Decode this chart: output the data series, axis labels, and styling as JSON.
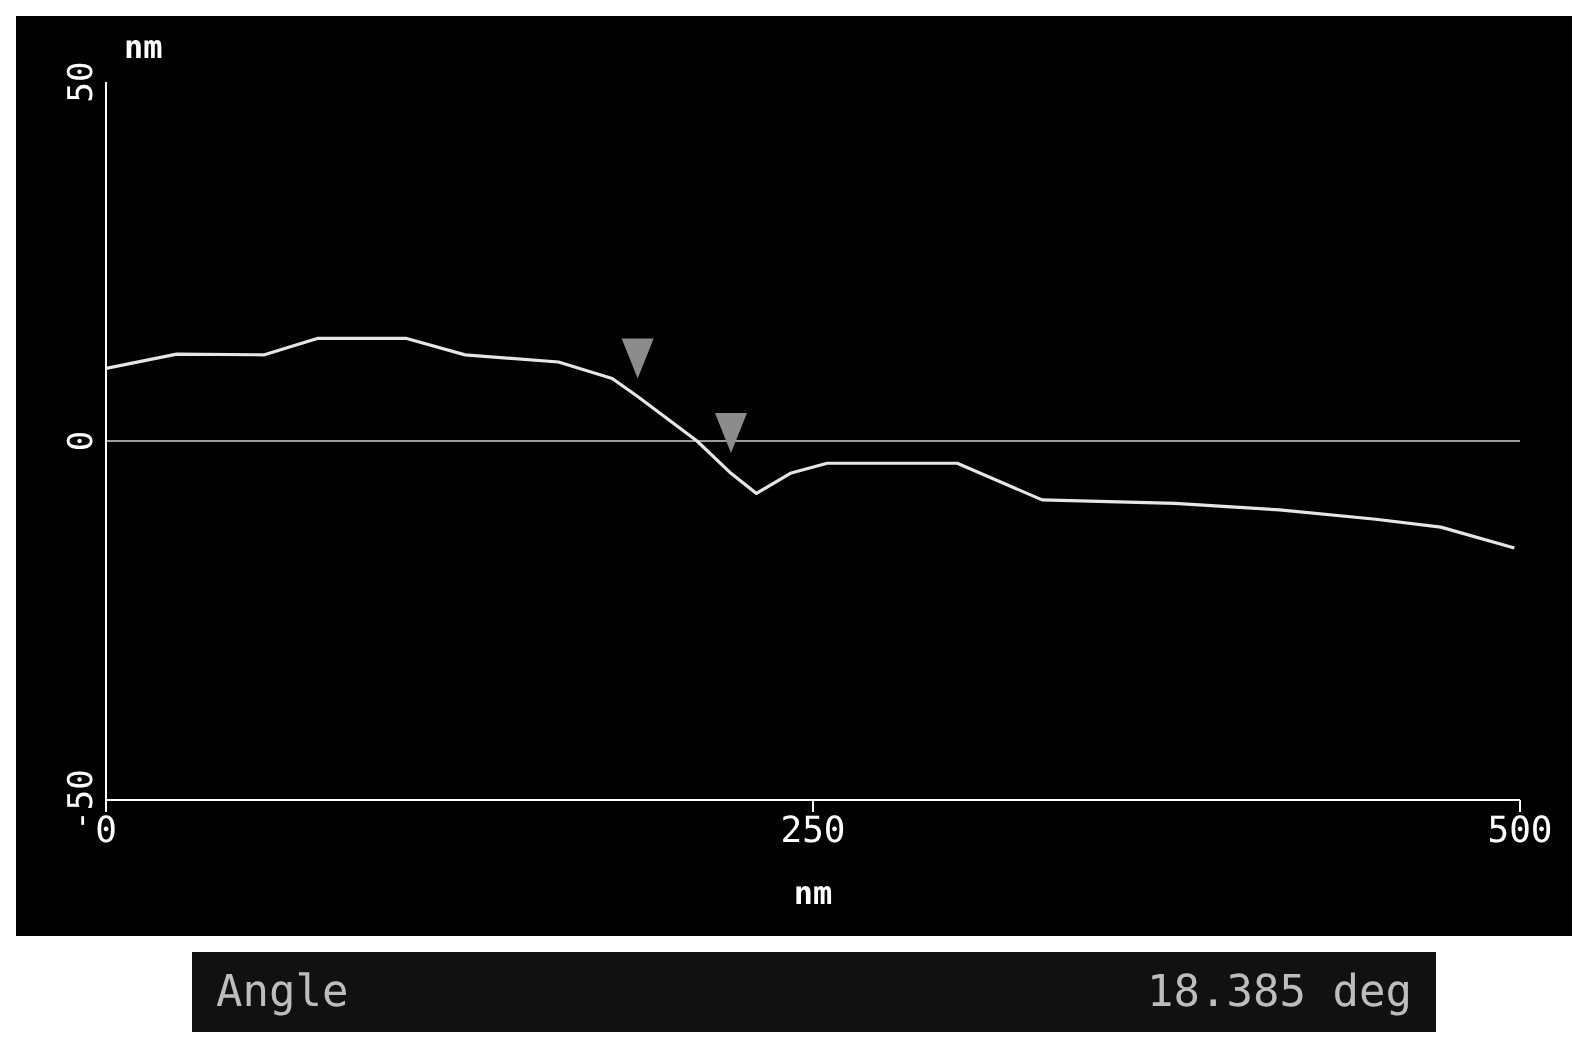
{
  "chart_data": {
    "type": "line",
    "xlabel": "nm",
    "ylabel": "nm",
    "xlim": [
      0,
      500
    ],
    "ylim": [
      -50,
      50
    ],
    "xticks": [
      0,
      250,
      500
    ],
    "yticks": [
      -50,
      0,
      50
    ],
    "series": [
      {
        "color": "#e6e6e6",
        "marker": "none",
        "x": [
          0,
          25,
          56,
          75,
          106,
          127,
          160,
          179,
          188,
          209,
          221,
          230,
          242,
          255,
          301,
          331,
          378,
          415,
          449,
          472,
          498
        ],
        "values": [
          10.1,
          12.1,
          12,
          14.3,
          14.3,
          12,
          11,
          8.7,
          6.2,
          0,
          -4.5,
          -7.3,
          -4.5,
          -3.1,
          -3.1,
          -8.2,
          -8.7,
          -9.6,
          -10.9,
          -12,
          -14.9
        ]
      },
      {
        "type": "scatter",
        "color": "#8c8c8c",
        "marker": "triangle",
        "x": [
          188,
          221
        ],
        "values": [
          11.5,
          1.1
        ]
      }
    ],
    "ref_lines": [
      {
        "axis": "y",
        "value": 0,
        "color": "#9a9a9a"
      }
    ],
    "annotations": [
      "Angle",
      "18.385 deg"
    ]
  }
}
